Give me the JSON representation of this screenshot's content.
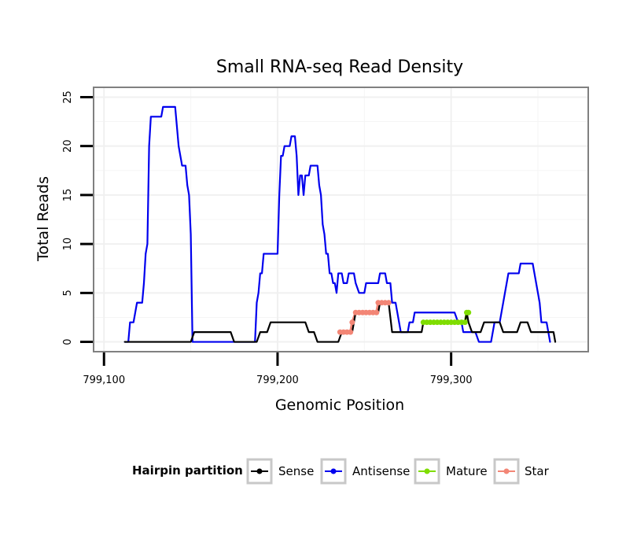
{
  "chart_data": {
    "type": "line",
    "title": "Small RNA-seq Read Density",
    "xlabel": "Genomic Position",
    "ylabel": "Total Reads",
    "xlim": [
      799094,
      799379
    ],
    "ylim": [
      -1,
      26
    ],
    "x_ticks": [
      799100,
      799200,
      799300
    ],
    "x_tick_labels": [
      "799,100",
      "799,200",
      "799,300"
    ],
    "y_ticks": [
      0,
      5,
      10,
      15,
      20,
      25
    ],
    "y_tick_labels": [
      "0",
      "5",
      "10",
      "15",
      "20",
      "25"
    ],
    "grid": true,
    "legend": {
      "title": "Hairpin partition",
      "placement": "bottom",
      "entries": [
        "Sense",
        "Antisense",
        "Mature",
        "Star"
      ]
    },
    "series": [
      {
        "name": "Sense",
        "color": "#000000",
        "markers": false,
        "points": [
          [
            799112,
            0
          ],
          [
            799150,
            0
          ],
          [
            799152,
            1
          ],
          [
            799173,
            1
          ],
          [
            799175,
            0
          ],
          [
            799188,
            0
          ],
          [
            799190,
            1
          ],
          [
            799194,
            1
          ],
          [
            799196,
            2
          ],
          [
            799216,
            2
          ],
          [
            799218,
            1
          ],
          [
            799221,
            1
          ],
          [
            799223,
            0
          ],
          [
            799235,
            0
          ],
          [
            799237,
            1
          ],
          [
            799243,
            1
          ],
          [
            799244,
            2
          ],
          [
            799245,
            3
          ],
          [
            799258,
            3
          ],
          [
            799259,
            4
          ],
          [
            799264,
            4
          ],
          [
            799266,
            1
          ],
          [
            799283,
            1
          ],
          [
            799284,
            2
          ],
          [
            799308,
            2
          ],
          [
            799309,
            3
          ],
          [
            799310,
            2
          ],
          [
            799312,
            1
          ],
          [
            799317,
            1
          ],
          [
            799319,
            2
          ],
          [
            799328,
            2
          ],
          [
            799330,
            1
          ],
          [
            799338,
            1
          ],
          [
            799340,
            2
          ],
          [
            799344,
            2
          ],
          [
            799346,
            1
          ],
          [
            799359,
            1
          ],
          [
            799360,
            0
          ]
        ]
      },
      {
        "name": "Antisense",
        "color": "#0000ee",
        "markers": false,
        "points": [
          [
            799112,
            0
          ],
          [
            799114,
            0
          ],
          [
            799115,
            2
          ],
          [
            799117,
            2
          ],
          [
            799119,
            4
          ],
          [
            799122,
            4
          ],
          [
            799123,
            6
          ],
          [
            799124,
            9
          ],
          [
            799125,
            10
          ],
          [
            799126,
            20
          ],
          [
            799127,
            23
          ],
          [
            799133,
            23
          ],
          [
            799134,
            24
          ],
          [
            799141,
            24
          ],
          [
            799142,
            22
          ],
          [
            799143,
            20
          ],
          [
            799145,
            18
          ],
          [
            799147,
            18
          ],
          [
            799148,
            16
          ],
          [
            799149,
            15
          ],
          [
            799150,
            11
          ],
          [
            799151,
            0
          ],
          [
            799152,
            0
          ],
          [
            799187,
            0
          ],
          [
            799188,
            4
          ],
          [
            799189,
            5
          ],
          [
            799190,
            7
          ],
          [
            799191,
            7
          ],
          [
            799192,
            9
          ],
          [
            799200,
            9
          ],
          [
            799201,
            15
          ],
          [
            799202,
            19
          ],
          [
            799203,
            19
          ],
          [
            799204,
            20
          ],
          [
            799207,
            20
          ],
          [
            799208,
            21
          ],
          [
            799210,
            21
          ],
          [
            799211,
            19
          ],
          [
            799212,
            15
          ],
          [
            799213,
            17
          ],
          [
            799214,
            17
          ],
          [
            799215,
            15
          ],
          [
            799216,
            17
          ],
          [
            799218,
            17
          ],
          [
            799219,
            18
          ],
          [
            799223,
            18
          ],
          [
            799224,
            16
          ],
          [
            799225,
            15
          ],
          [
            799226,
            12
          ],
          [
            799227,
            11
          ],
          [
            799228,
            9
          ],
          [
            799229,
            9
          ],
          [
            799230,
            7
          ],
          [
            799231,
            7
          ],
          [
            799232,
            6
          ],
          [
            799233,
            6
          ],
          [
            799234,
            5
          ],
          [
            799235,
            7
          ],
          [
            799237,
            7
          ],
          [
            799238,
            6
          ],
          [
            799240,
            6
          ],
          [
            799241,
            7
          ],
          [
            799244,
            7
          ],
          [
            799245,
            6
          ],
          [
            799247,
            5
          ],
          [
            799250,
            5
          ],
          [
            799251,
            6
          ],
          [
            799258,
            6
          ],
          [
            799259,
            7
          ],
          [
            799262,
            7
          ],
          [
            799263,
            6
          ],
          [
            799265,
            6
          ],
          [
            799266,
            4
          ],
          [
            799268,
            4
          ],
          [
            799269,
            3
          ],
          [
            799270,
            2
          ],
          [
            799271,
            1
          ],
          [
            799275,
            1
          ],
          [
            799276,
            2
          ],
          [
            799278,
            2
          ],
          [
            799279,
            3
          ],
          [
            799284,
            3
          ],
          [
            799285,
            3
          ],
          [
            799302,
            3
          ],
          [
            799304,
            2
          ],
          [
            799306,
            2
          ],
          [
            799307,
            1
          ],
          [
            799314,
            1
          ],
          [
            799316,
            0
          ],
          [
            799323,
            0
          ],
          [
            799325,
            2
          ],
          [
            799328,
            2
          ],
          [
            799329,
            3
          ],
          [
            799330,
            4
          ],
          [
            799331,
            5
          ],
          [
            799332,
            6
          ],
          [
            799333,
            7
          ],
          [
            799338,
            7
          ],
          [
            799339,
            7
          ],
          [
            799340,
            8
          ],
          [
            799347,
            8
          ],
          [
            799348,
            7
          ],
          [
            799349,
            6
          ],
          [
            799350,
            5
          ],
          [
            799351,
            4
          ],
          [
            799352,
            2
          ],
          [
            799355,
            2
          ],
          [
            799356,
            1
          ],
          [
            799357,
            0
          ]
        ]
      },
      {
        "name": "Mature",
        "color": "#7fdd00",
        "markers": true,
        "points": [
          [
            799284,
            2
          ],
          [
            799286,
            2
          ],
          [
            799288,
            2
          ],
          [
            799290,
            2
          ],
          [
            799292,
            2
          ],
          [
            799294,
            2
          ],
          [
            799296,
            2
          ],
          [
            799298,
            2
          ],
          [
            799300,
            2
          ],
          [
            799302,
            2
          ],
          [
            799304,
            2
          ],
          [
            799306,
            2
          ],
          [
            799308,
            2
          ],
          [
            799309,
            3
          ],
          [
            799310,
            3
          ]
        ]
      },
      {
        "name": "Star",
        "color": "#f38676",
        "markers": true,
        "points": [
          [
            799236,
            1
          ],
          [
            799238,
            1
          ],
          [
            799240,
            1
          ],
          [
            799242,
            1
          ],
          [
            799243,
            2
          ],
          [
            799245,
            3
          ],
          [
            799247,
            3
          ],
          [
            799249,
            3
          ],
          [
            799251,
            3
          ],
          [
            799253,
            3
          ],
          [
            799255,
            3
          ],
          [
            799257,
            3
          ],
          [
            799258,
            4
          ],
          [
            799260,
            4
          ],
          [
            799262,
            4
          ],
          [
            799264,
            4
          ]
        ]
      }
    ]
  }
}
